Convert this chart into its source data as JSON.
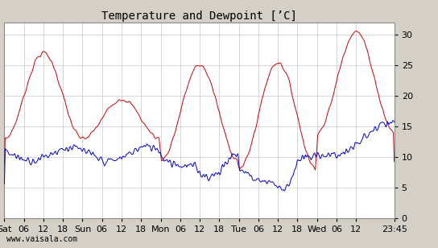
{
  "title": "Temperature and Dewpoint [’C]",
  "yticks": [
    0,
    5,
    10,
    15,
    20,
    25,
    30
  ],
  "ylim": [
    0,
    32
  ],
  "background_color": "#d4d0c8",
  "plot_bg_color": "#ffffff",
  "grid_color": "#c8c8c8",
  "temp_color": "#cc0000",
  "dewp_color": "#0000cc",
  "title_fontsize": 10,
  "tick_fontsize": 8,
  "watermark": "www.vaisala.com",
  "line_width": 0.7,
  "xtick_labels": [
    "Sat",
    "06",
    "12",
    "18",
    "Sun",
    "06",
    "12",
    "18",
    "Mon",
    "06",
    "12",
    "18",
    "Tue",
    "06",
    "12",
    "18",
    "Wed",
    "06",
    "12",
    "23:45"
  ]
}
